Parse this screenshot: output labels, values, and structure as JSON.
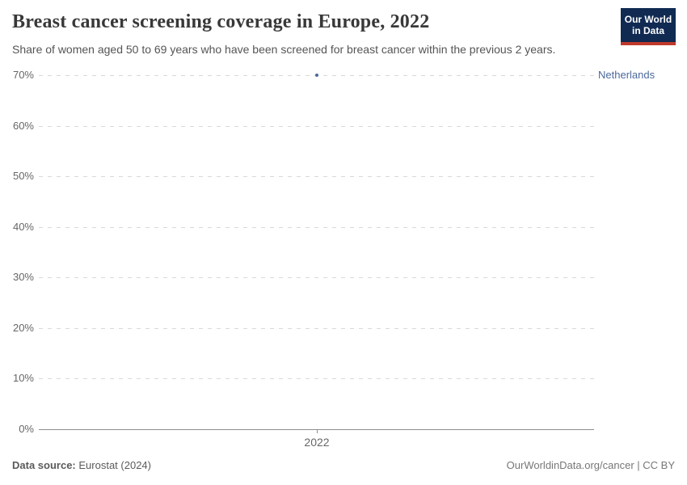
{
  "header": {
    "title": "Breast cancer screening coverage in Europe, 2022",
    "subtitle": "Share of women aged 50 to 69 years who have been screened for breast cancer within the previous 2 years.",
    "logo": {
      "line1": "Our World",
      "line2": "in Data",
      "bg_color": "#102a52",
      "bar_color": "#c0392b"
    }
  },
  "chart_data": {
    "type": "scatter",
    "title": "Breast cancer screening coverage in Europe, 2022",
    "x": [
      2022
    ],
    "series": [
      {
        "name": "Netherlands",
        "values": [
          70
        ],
        "color": "#4c6a9c"
      }
    ],
    "xlabel": "",
    "ylabel": "",
    "ylim": [
      0,
      70
    ],
    "yticks": [
      {
        "value": 70,
        "label": "70%"
      },
      {
        "value": 60,
        "label": "60%"
      },
      {
        "value": 50,
        "label": "50%"
      },
      {
        "value": 40,
        "label": "40%"
      },
      {
        "value": 30,
        "label": "30%"
      },
      {
        "value": 20,
        "label": "20%"
      },
      {
        "value": 10,
        "label": "10%"
      },
      {
        "value": 0,
        "label": "0%"
      }
    ],
    "xticks": [
      {
        "value": 2022,
        "label": "2022"
      }
    ],
    "grid": "horizontal dashed, baseline solid",
    "legend": "entity label at right of plot"
  },
  "footer": {
    "source_label": "Data source:",
    "source_value": "Eurostat (2024)",
    "credit": "OurWorldinData.org/cancer | CC BY"
  },
  "colors": {
    "title": "#383838",
    "subtitle": "#555555",
    "tick_label": "#666666",
    "gridline": "#d9d9d9",
    "axis": "#8f8f8f",
    "entity": "#4c6a9c"
  }
}
